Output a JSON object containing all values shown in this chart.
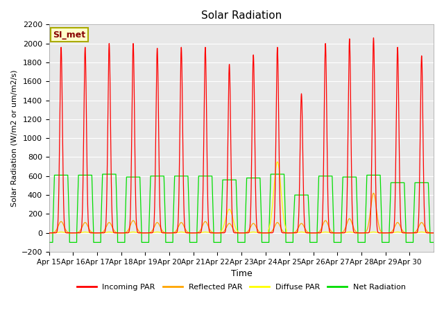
{
  "title": "Solar Radiation",
  "ylabel": "Solar Radiation (W/m2 or um/m2/s)",
  "xlabel": "Time",
  "ylim": [
    -200,
    2200
  ],
  "annotation_text": "SI_met",
  "annotation_bg": "#FFFFCC",
  "annotation_border": "#AAAA00",
  "bg_color": "#E8E8E8",
  "grid_color": "white",
  "x_tick_labels": [
    "Apr 15",
    "Apr 16",
    "Apr 17",
    "Apr 18",
    "Apr 19",
    "Apr 20",
    "Apr 21",
    "Apr 22",
    "Apr 23",
    "Apr 24",
    "Apr 25",
    "Apr 26",
    "Apr 27",
    "Apr 28",
    "Apr 29",
    "Apr 30"
  ],
  "legend_entries": [
    "Incoming PAR",
    "Reflected PAR",
    "Diffuse PAR",
    "Net Radiation"
  ],
  "legend_colors": [
    "red",
    "orange",
    "yellow",
    "#00DD00"
  ],
  "num_days": 16,
  "peaks_incoming": [
    1960,
    1960,
    2000,
    2000,
    1950,
    1960,
    1960,
    1780,
    1880,
    1960,
    1470,
    2000,
    2050,
    2060,
    1960,
    1870
  ],
  "peaks_reflected": [
    120,
    110,
    110,
    130,
    110,
    110,
    120,
    100,
    100,
    110,
    100,
    130,
    150,
    420,
    110,
    110
  ],
  "peaks_diffuse": [
    10,
    10,
    10,
    10,
    10,
    10,
    10,
    250,
    10,
    750,
    10,
    10,
    10,
    10,
    10,
    10
  ],
  "peaks_net": [
    610,
    610,
    620,
    590,
    600,
    600,
    600,
    560,
    580,
    620,
    400,
    600,
    590,
    610,
    530,
    530
  ],
  "night_net": -100,
  "samples_per_day": 500
}
